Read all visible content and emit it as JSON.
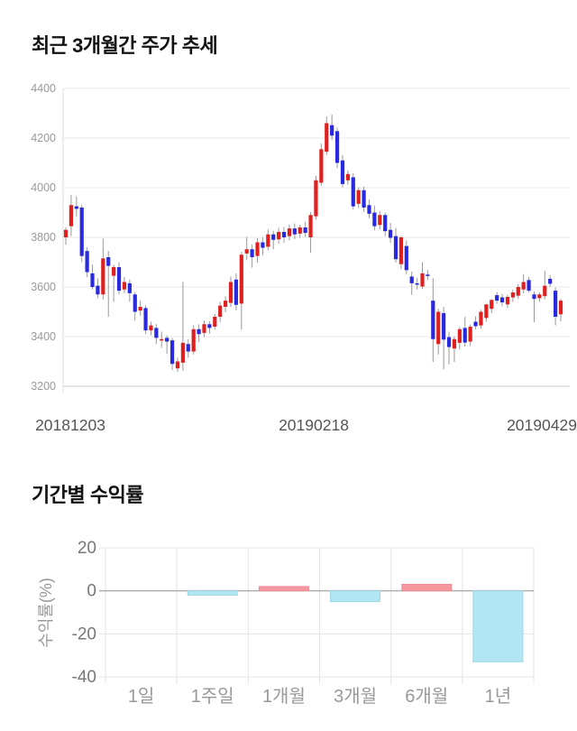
{
  "price_chart": {
    "title": "최근 3개월간 주가 추세"
  },
  "returns_chart": {
    "title": "기간별 수익률"
  },
  "chart_data": [
    {
      "type": "candlestick",
      "title": "최근 3개월간 주가 추세",
      "ylim": [
        3200,
        4400
      ],
      "yticks": [
        4400,
        4200,
        4000,
        3800,
        3600,
        3400,
        3200
      ],
      "xticklabels": [
        "20181203",
        "20190218",
        "20190429"
      ],
      "grid": "horizontal",
      "up_color": "#e01f1f",
      "down_color": "#2929e0",
      "wick_color": "#999999",
      "candles_ohlc": [
        [
          3800,
          3840,
          3770,
          3830
        ],
        [
          3845,
          3970,
          3805,
          3930
        ],
        [
          3925,
          3965,
          3885,
          3915
        ],
        [
          3920,
          3930,
          3700,
          3725
        ],
        [
          3745,
          3760,
          3640,
          3660
        ],
        [
          3655,
          3690,
          3590,
          3600
        ],
        [
          3605,
          3635,
          3555,
          3570
        ],
        [
          3570,
          3795,
          3550,
          3715
        ],
        [
          3720,
          3745,
          3480,
          3685
        ],
        [
          3645,
          3690,
          3540,
          3680
        ],
        [
          3680,
          3700,
          3570,
          3585
        ],
        [
          3590,
          3640,
          3575,
          3620
        ],
        [
          3615,
          3630,
          3540,
          3575
        ],
        [
          3570,
          3580,
          3465,
          3500
        ],
        [
          3505,
          3545,
          3485,
          3520
        ],
        [
          3515,
          3525,
          3410,
          3425
        ],
        [
          3425,
          3460,
          3405,
          3445
        ],
        [
          3435,
          3450,
          3370,
          3395
        ],
        [
          3385,
          3420,
          3355,
          3390
        ],
        [
          3395,
          3405,
          3330,
          3380
        ],
        [
          3385,
          3395,
          3265,
          3290
        ],
        [
          3272,
          3315,
          3258,
          3300
        ],
        [
          3295,
          3620,
          3262,
          3375
        ],
        [
          3370,
          3390,
          3315,
          3340
        ],
        [
          3340,
          3445,
          3328,
          3430
        ],
        [
          3430,
          3450,
          3378,
          3410
        ],
        [
          3415,
          3465,
          3398,
          3450
        ],
        [
          3450,
          3462,
          3412,
          3435
        ],
        [
          3440,
          3492,
          3428,
          3480
        ],
        [
          3480,
          3540,
          3458,
          3525
        ],
        [
          3520,
          3562,
          3498,
          3545
        ],
        [
          3536,
          3642,
          3518,
          3620
        ],
        [
          3630,
          3655,
          3505,
          3528
        ],
        [
          3533,
          3742,
          3428,
          3730
        ],
        [
          3735,
          3802,
          3708,
          3752
        ],
        [
          3752,
          3772,
          3678,
          3720
        ],
        [
          3725,
          3797,
          3698,
          3780
        ],
        [
          3780,
          3800,
          3728,
          3758
        ],
        [
          3762,
          3832,
          3748,
          3812
        ],
        [
          3812,
          3827,
          3752,
          3790
        ],
        [
          3792,
          3838,
          3775,
          3822
        ],
        [
          3822,
          3842,
          3778,
          3800
        ],
        [
          3805,
          3852,
          3788,
          3836
        ],
        [
          3836,
          3856,
          3793,
          3812
        ],
        [
          3815,
          3850,
          3798,
          3840
        ],
        [
          3840,
          3862,
          3802,
          3818
        ],
        [
          3800,
          3902,
          3738,
          3890
        ],
        [
          3885,
          4048,
          3872,
          4030
        ],
        [
          4020,
          4178,
          4008,
          4155
        ],
        [
          4145,
          4287,
          4132,
          4260
        ],
        [
          4252,
          4295,
          4192,
          4210
        ],
        [
          4228,
          4242,
          4078,
          4100
        ],
        [
          4110,
          4132,
          4002,
          4015
        ],
        [
          4030,
          4068,
          4012,
          4055
        ],
        [
          4042,
          4058,
          3912,
          3925
        ],
        [
          3935,
          4002,
          3918,
          3990
        ],
        [
          3990,
          4005,
          3902,
          3920
        ],
        [
          3930,
          3952,
          3878,
          3895
        ],
        [
          3900,
          3928,
          3828,
          3845
        ],
        [
          3850,
          3905,
          3832,
          3890
        ],
        [
          3890,
          3900,
          3805,
          3825
        ],
        [
          3830,
          3858,
          3778,
          3798
        ],
        [
          3805,
          3838,
          3698,
          3712
        ],
        [
          3692,
          3806,
          3672,
          3800
        ],
        [
          3765,
          3788,
          3652,
          3668
        ],
        [
          3642,
          3662,
          3568,
          3615
        ],
        [
          3615,
          3636,
          3590,
          3610
        ],
        [
          3602,
          3700,
          3592,
          3655
        ],
        [
          3650,
          3668,
          3628,
          3645
        ],
        [
          3545,
          3635,
          3298,
          3390
        ],
        [
          3370,
          3512,
          3328,
          3500
        ],
        [
          3495,
          3520,
          3268,
          3388
        ],
        [
          3398,
          3420,
          3288,
          3358
        ],
        [
          3352,
          3402,
          3298,
          3390
        ],
        [
          3375,
          3438,
          3348,
          3430
        ],
        [
          3435,
          3480,
          3360,
          3376
        ],
        [
          3380,
          3448,
          3362,
          3440
        ],
        [
          3460,
          3482,
          3430,
          3442
        ],
        [
          3445,
          3508,
          3432,
          3500
        ],
        [
          3475,
          3532,
          3460,
          3530
        ],
        [
          3512,
          3550,
          3495,
          3548
        ],
        [
          3567,
          3580,
          3532,
          3545
        ],
        [
          3558,
          3572,
          3522,
          3538
        ],
        [
          3530,
          3568,
          3515,
          3560
        ],
        [
          3558,
          3590,
          3540,
          3578
        ],
        [
          3565,
          3612,
          3552,
          3600
        ],
        [
          3590,
          3652,
          3575,
          3620
        ],
        [
          3628,
          3640,
          3578,
          3585
        ],
        [
          3570,
          3582,
          3458,
          3552
        ],
        [
          3555,
          3578,
          3540,
          3570
        ],
        [
          3563,
          3665,
          3550,
          3605
        ],
        [
          3633,
          3648,
          3600,
          3613
        ],
        [
          3585,
          3598,
          3445,
          3480
        ],
        [
          3490,
          3552,
          3462,
          3545
        ]
      ]
    },
    {
      "type": "bar",
      "title": "기간별 수익률",
      "categories": [
        "1일",
        "1주일",
        "1개월",
        "3개월",
        "6개월",
        "1년"
      ],
      "values": [
        0,
        -2,
        2,
        -5,
        3,
        -33
      ],
      "ylabel": "수익률(%)",
      "yticks": [
        20,
        0,
        -20,
        -40
      ],
      "ylim": [
        -40,
        20
      ],
      "grid": "both",
      "positive_color": "#f5989f",
      "positive_border": "#ef8a92",
      "negative_color": "#b2e6f2",
      "negative_border": "#9bd7e5"
    }
  ]
}
